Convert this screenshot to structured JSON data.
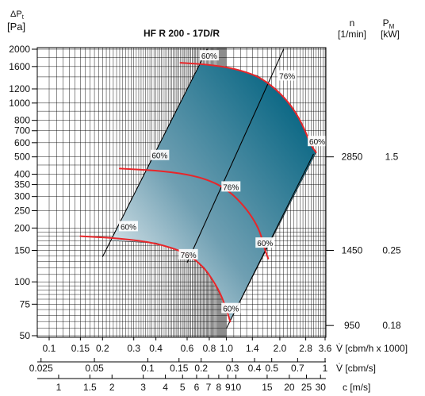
{
  "chart_data": {
    "type": "line",
    "title": "HF R 200 - 17D/R",
    "y_axis": {
      "label_symbol": "ΔP",
      "label_subscript": "t",
      "unit": "[Pa]",
      "scale": "log",
      "range": [
        48,
        2000
      ],
      "ticks": [
        "50",
        "75",
        "100",
        "150",
        "200",
        "250",
        "300",
        "350",
        "400",
        "500",
        "600",
        "700",
        "800",
        "1000",
        "1200",
        "1600",
        "2000"
      ]
    },
    "x_axes": [
      {
        "name": "flow_cbm_h",
        "label": "V̇ [cbm/h x 1000]",
        "scale": "log",
        "ticks": [
          "0.1",
          "0.15",
          "0.2",
          "0.3",
          "0.4",
          "0.6",
          "0.8",
          "1.0",
          "1.4",
          "2.0",
          "2.8",
          "3.6"
        ]
      },
      {
        "name": "flow_cbm_s",
        "label": "V̇ [cbm/s]",
        "scale": "log",
        "ticks": [
          "0.025",
          "0.05",
          "0.1",
          "0.15",
          "0.2",
          "0.3",
          "0.4",
          "0.5",
          "0.7",
          "1"
        ]
      },
      {
        "name": "velocity",
        "label": "c [m/s]",
        "scale": "log",
        "ticks": [
          "1",
          "1.5",
          "2",
          "3",
          "4",
          "5",
          "6",
          "7",
          "8",
          "9",
          "10",
          "15",
          "20",
          "25",
          "30"
        ]
      }
    ],
    "right_columns": {
      "n_header": "n",
      "n_unit": "[1/min]",
      "pm_header_symbol": "P",
      "pm_header_subscript": "M",
      "pm_unit": "[kW]",
      "rows": [
        {
          "n": "2850",
          "pm": "1.5",
          "at_pa": 500
        },
        {
          "n": "1450",
          "pm": "0.25",
          "at_pa": 150
        },
        {
          "n": "950",
          "pm": "0.18",
          "at_pa": 57
        }
      ]
    },
    "series": [
      {
        "name": "2850",
        "points": [
          [
            0.55,
            1680
          ],
          [
            0.8,
            1640
          ],
          [
            1.1,
            1560
          ],
          [
            1.5,
            1420
          ],
          [
            1.9,
            1200
          ],
          [
            2.3,
            980
          ],
          [
            2.65,
            780
          ],
          [
            3.0,
            580
          ],
          [
            3.2,
            530
          ]
        ]
      },
      {
        "name": "1450",
        "points": [
          [
            0.25,
            430
          ],
          [
            0.4,
            420
          ],
          [
            0.6,
            400
          ],
          [
            0.8,
            370
          ],
          [
            1.0,
            330
          ],
          [
            1.2,
            280
          ],
          [
            1.4,
            230
          ],
          [
            1.55,
            190
          ],
          [
            1.65,
            150
          ],
          [
            1.72,
            135
          ]
        ]
      },
      {
        "name": "950",
        "points": [
          [
            0.15,
            180
          ],
          [
            0.25,
            175
          ],
          [
            0.4,
            165
          ],
          [
            0.6,
            145
          ],
          [
            0.75,
            120
          ],
          [
            0.85,
            100
          ],
          [
            0.93,
            85
          ],
          [
            1.0,
            70
          ],
          [
            1.05,
            60
          ]
        ]
      }
    ],
    "efficiency_lines": [
      {
        "label": "60%",
        "from": [
          0.2,
          138
        ],
        "to": [
          0.78,
          2000
        ]
      },
      {
        "label": "76%",
        "from": [
          0.6,
          128
        ],
        "to": [
          2.1,
          2000
        ]
      },
      {
        "label": "60%",
        "from": [
          1.0,
          55
        ],
        "to": [
          3.1,
          520
        ]
      }
    ],
    "annotations": [
      {
        "text": "60%",
        "x": 0.8,
        "y": 1840
      },
      {
        "text": "76%",
        "x": 2.2,
        "y": 1420
      },
      {
        "text": "60%",
        "x": 3.25,
        "y": 610
      },
      {
        "text": "60%",
        "x": 0.42,
        "y": 510
      },
      {
        "text": "76%",
        "x": 1.06,
        "y": 340
      },
      {
        "text": "60%",
        "x": 0.28,
        "y": 204
      },
      {
        "text": "76%",
        "x": 0.61,
        "y": 142
      },
      {
        "text": "60%",
        "x": 1.65,
        "y": 165
      },
      {
        "text": "60%",
        "x": 1.06,
        "y": 71
      }
    ],
    "colors": {
      "curve": "#e8262a",
      "shade_dark": "#0d6f8a",
      "shade_light": "#f2f6f8",
      "grid": "#000000"
    },
    "grid": true
  }
}
